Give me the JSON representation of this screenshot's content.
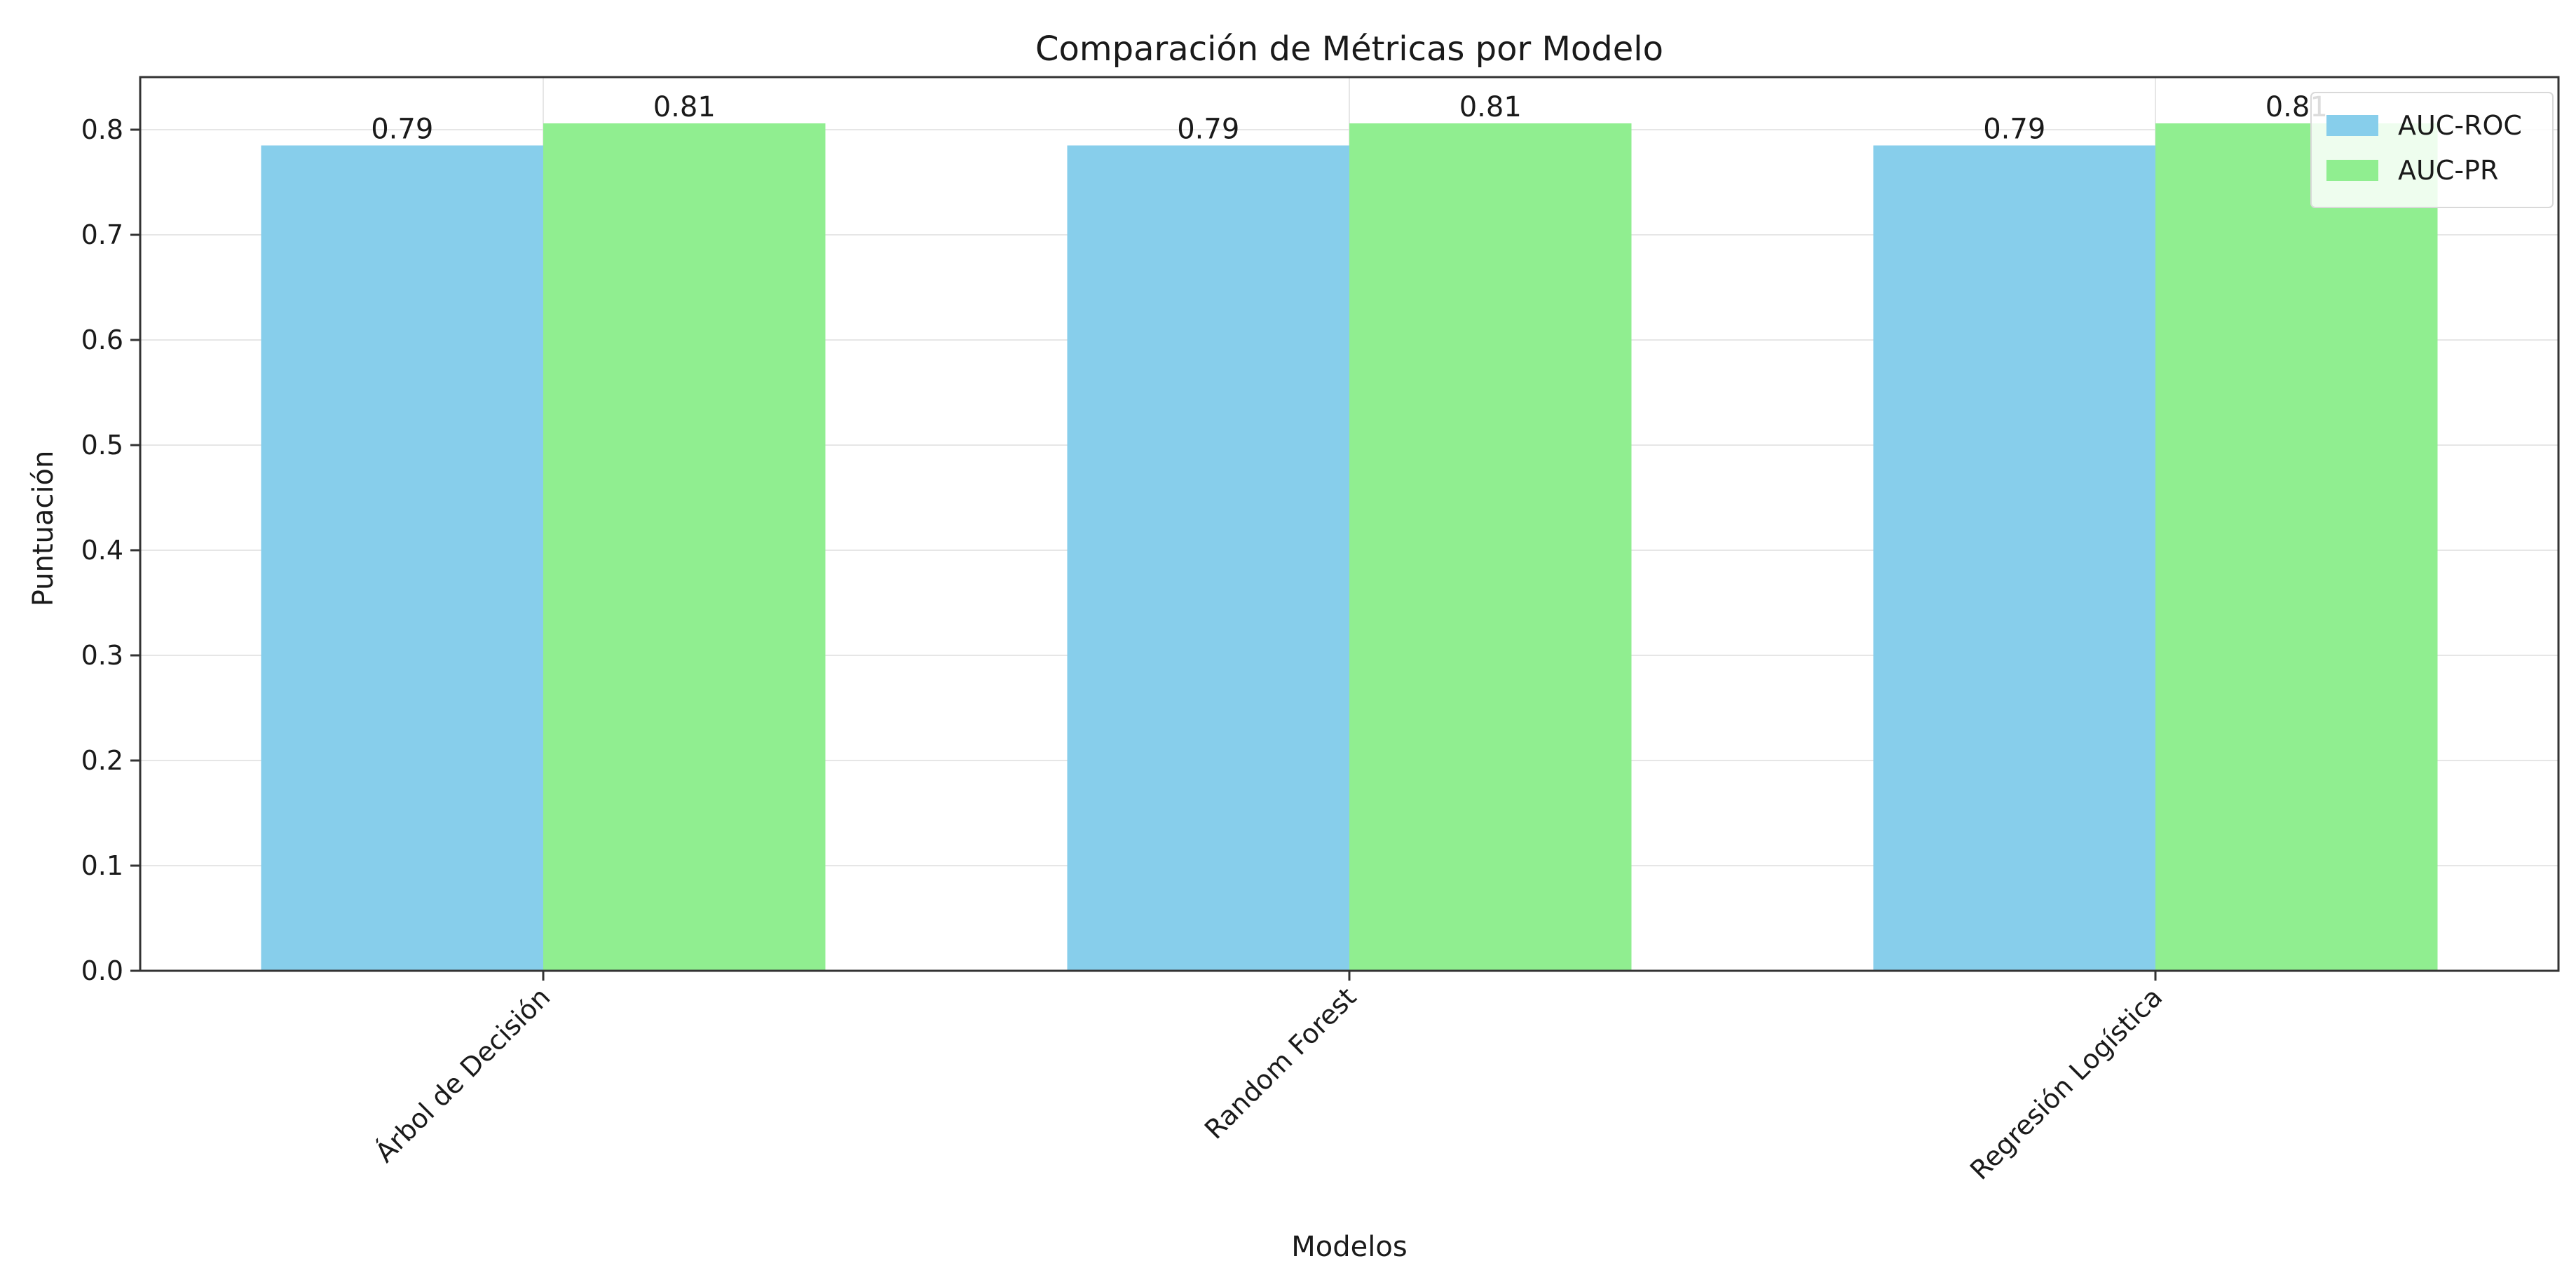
{
  "chart_data": {
    "type": "bar",
    "title": "Comparación de Métricas por Modelo",
    "xlabel": "Modelos",
    "ylabel": "Puntuación",
    "categories": [
      "Árbol de Decisión",
      "Random Forest",
      "Regresión Logística"
    ],
    "series": [
      {
        "name": "AUC-ROC",
        "values": [
          0.785,
          0.785,
          0.785
        ],
        "labels": [
          "0.79",
          "0.79",
          "0.79"
        ],
        "color": "#87CEEB"
      },
      {
        "name": "AUC-PR",
        "values": [
          0.806,
          0.806,
          0.806
        ],
        "labels": [
          "0.81",
          "0.81",
          "0.81"
        ],
        "color": "#90EE90"
      }
    ],
    "ylim": [
      0,
      0.85
    ],
    "yticks": [
      "0.0",
      "0.1",
      "0.2",
      "0.3",
      "0.4",
      "0.5",
      "0.6",
      "0.7",
      "0.8"
    ],
    "grid": true,
    "legend_position": "top-right"
  }
}
